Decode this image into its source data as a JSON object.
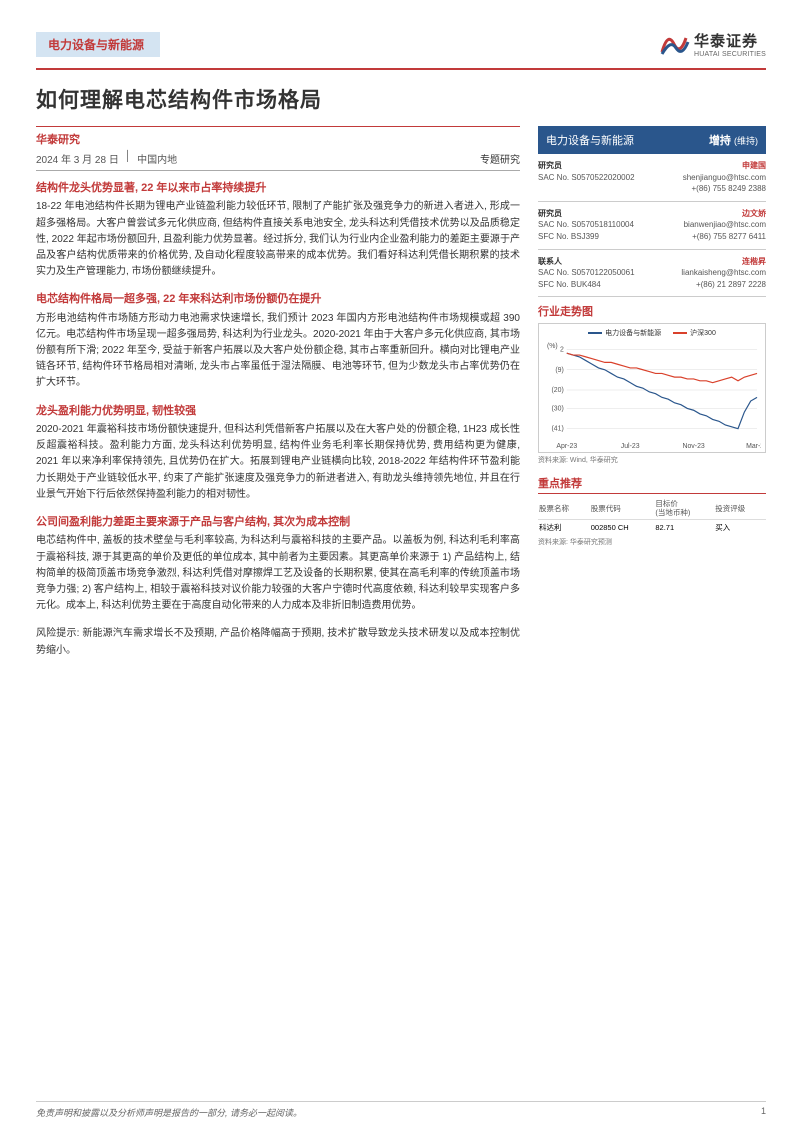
{
  "header": {
    "sector": "电力设备与新能源",
    "logo_cn": "华泰证券",
    "logo_en": "HUATAI SECURITIES"
  },
  "title": "如何理解电芯结构件市场格局",
  "meta": {
    "research_label": "华泰研究",
    "date": "2024 年 3 月 28 日",
    "region": "中国内地",
    "doc_type": "专题研究"
  },
  "sections": [
    {
      "title": "结构件龙头优势显著, 22 年以来市占率持续提升",
      "body": "18-22 年电池结构件长期为锂电产业链盈利能力较低环节, 限制了产能扩张及强竞争力的新进入者进入, 形成一超多强格局。大客户曾尝试多元化供应商, 但结构件直接关系电池安全, 龙头科达利凭借技术优势以及品质稳定性, 2022 年起市场份额回升, 且盈利能力优势显著。经过拆分, 我们认为行业内企业盈利能力的差距主要源于产品及客户结构优质带来的价格优势, 及自动化程度较高带来的成本优势。我们看好科达利凭借长期积累的技术实力及生产管理能力, 市场份额继续提升。"
    },
    {
      "title": "电芯结构件格局一超多强, 22 年来科达利市场份额仍在提升",
      "body": "方形电池结构件市场随方形动力电池需求快速增长, 我们预计 2023 年国内方形电池结构件市场规模或超 390 亿元。电芯结构件市场呈现一超多强局势, 科达利为行业龙头。2020-2021 年由于大客户多元化供应商, 其市场份额有所下滑; 2022 年至今, 受益于新客户拓展以及大客户处份额企稳, 其市占率重新回升。横向对比锂电产业链各环节, 结构件环节格局相对清晰, 龙头市占率虽低于湿法隔膜、电池等环节, 但为少数龙头市占率优势仍在扩大环节。"
    },
    {
      "title": "龙头盈利能力优势明显, 韧性较强",
      "body": "2020-2021 年震裕科技市场份额快速提升, 但科达利凭借新客户拓展以及在大客户处的份额企稳, 1H23 成长性反超震裕科技。盈利能力方面, 龙头科达利优势明显, 结构件业务毛利率长期保持优势, 费用结构更为健康, 2021 年以来净利率保持领先, 且优势仍在扩大。拓展到锂电产业链横向比较, 2018-2022 年结构件环节盈利能力长期处于产业链较低水平, 约束了产能扩张速度及强竞争力的新进者进入, 有助龙头维持领先地位, 并且在行业景气开始下行后依然保持盈利能力的相对韧性。"
    },
    {
      "title": "公司间盈利能力差距主要来源于产品与客户结构, 其次为成本控制",
      "body": "电芯结构件中, 盖板的技术壁垒与毛利率较高, 为科达利与震裕科技的主要产品。以盖板为例, 科达利毛利率高于震裕科技, 源于其更高的单价及更低的单位成本, 其中前者为主要因素。其更高单价来源于 1) 产品结构上, 结构简单的极简顶盖市场竞争激烈, 科达利凭借对摩擦焊工艺及设备的长期积累, 使其在高毛利率的传统顶盖市场竞争力强; 2) 客户结构上, 相较于震裕科技对议价能力较强的大客户宁德时代高度依赖, 科达利较早实现客户多元化。成本上, 科达利优势主要在于高度自动化带来的人力成本及非折旧制造费用优势。"
    },
    {
      "title": "",
      "body": "风险提示: 新能源汽车需求增长不及预期, 产品价格降幅高于预期, 技术扩散导致龙头技术研发以及成本控制优势缩小。"
    }
  ],
  "right_banner": {
    "sector": "电力设备与新能源",
    "rating": "增持",
    "hold": "(维持)"
  },
  "analysts": [
    {
      "label": "研究员",
      "name": "申建国",
      "line1": "SAC No. S0570522020002",
      "email": "shenjianguo@htsc.com",
      "phone": "+(86) 755 8249 2388"
    },
    {
      "label": "研究员",
      "name": "边文娇",
      "line1": "SAC No. S0570518110004",
      "email": "bianwenjiao@htsc.com",
      "line2": "SFC No. BSJ399",
      "phone": "+(86) 755 8277 6411"
    },
    {
      "label": "联系人",
      "name": "连楷昇",
      "line1": "SAC No. S0570122050061",
      "email": "liankaisheng@htsc.com",
      "line2": "SFC No. BUK484",
      "phone": "+(86) 21 2897 2228"
    }
  ],
  "chart": {
    "type": "line",
    "title": "行业走势图",
    "legend": [
      {
        "label": "电力设备与新能源",
        "color": "#2a568c"
      },
      {
        "label": "沪深300",
        "color": "#d9412b"
      }
    ],
    "x_labels": [
      "Apr-23",
      "Jul-23",
      "Nov-23",
      "Mar-24"
    ],
    "y_ticks": [
      2,
      -9,
      -20,
      -30,
      -41
    ],
    "ylim": [
      -45,
      5
    ],
    "series": [
      {
        "color": "#2a568c",
        "width": 1.2,
        "data": [
          0,
          -1,
          -2,
          -4,
          -6,
          -8,
          -9,
          -11,
          -13,
          -14,
          -16,
          -18,
          -19,
          -21,
          -22,
          -24,
          -25,
          -27,
          -28,
          -30,
          -31,
          -33,
          -34,
          -36,
          -37,
          -39,
          -40,
          -41,
          -32,
          -26,
          -24
        ]
      },
      {
        "color": "#d9412b",
        "width": 1.2,
        "data": [
          0,
          -1,
          -1,
          -2,
          -3,
          -4,
          -5,
          -5,
          -6,
          -7,
          -8,
          -8,
          -9,
          -10,
          -11,
          -11,
          -12,
          -13,
          -13,
          -14,
          -14,
          -15,
          -15,
          -16,
          -15,
          -14,
          -13,
          -15,
          -13,
          -12,
          -11
        ]
      }
    ],
    "source": "资料来源: Wind, 华泰研究",
    "background_color": "#ffffff",
    "grid_color": "#dddddd",
    "axis_font": 7
  },
  "recommend": {
    "title": "重点推荐",
    "headers": [
      "股票名称",
      "股票代码",
      "目标价\n(当地币种)",
      "投资评级"
    ],
    "rows": [
      [
        "科达利",
        "002850 CH",
        "82.71",
        "买入"
      ]
    ],
    "source": "资料来源: 华泰研究预测"
  },
  "footer": {
    "disclaimer": "免责声明和披露以及分析师声明是报告的一部分, 请务必一起阅读。",
    "page": "1"
  },
  "colors": {
    "brand_red": "#c23a3a",
    "brand_blue": "#2a568c"
  }
}
